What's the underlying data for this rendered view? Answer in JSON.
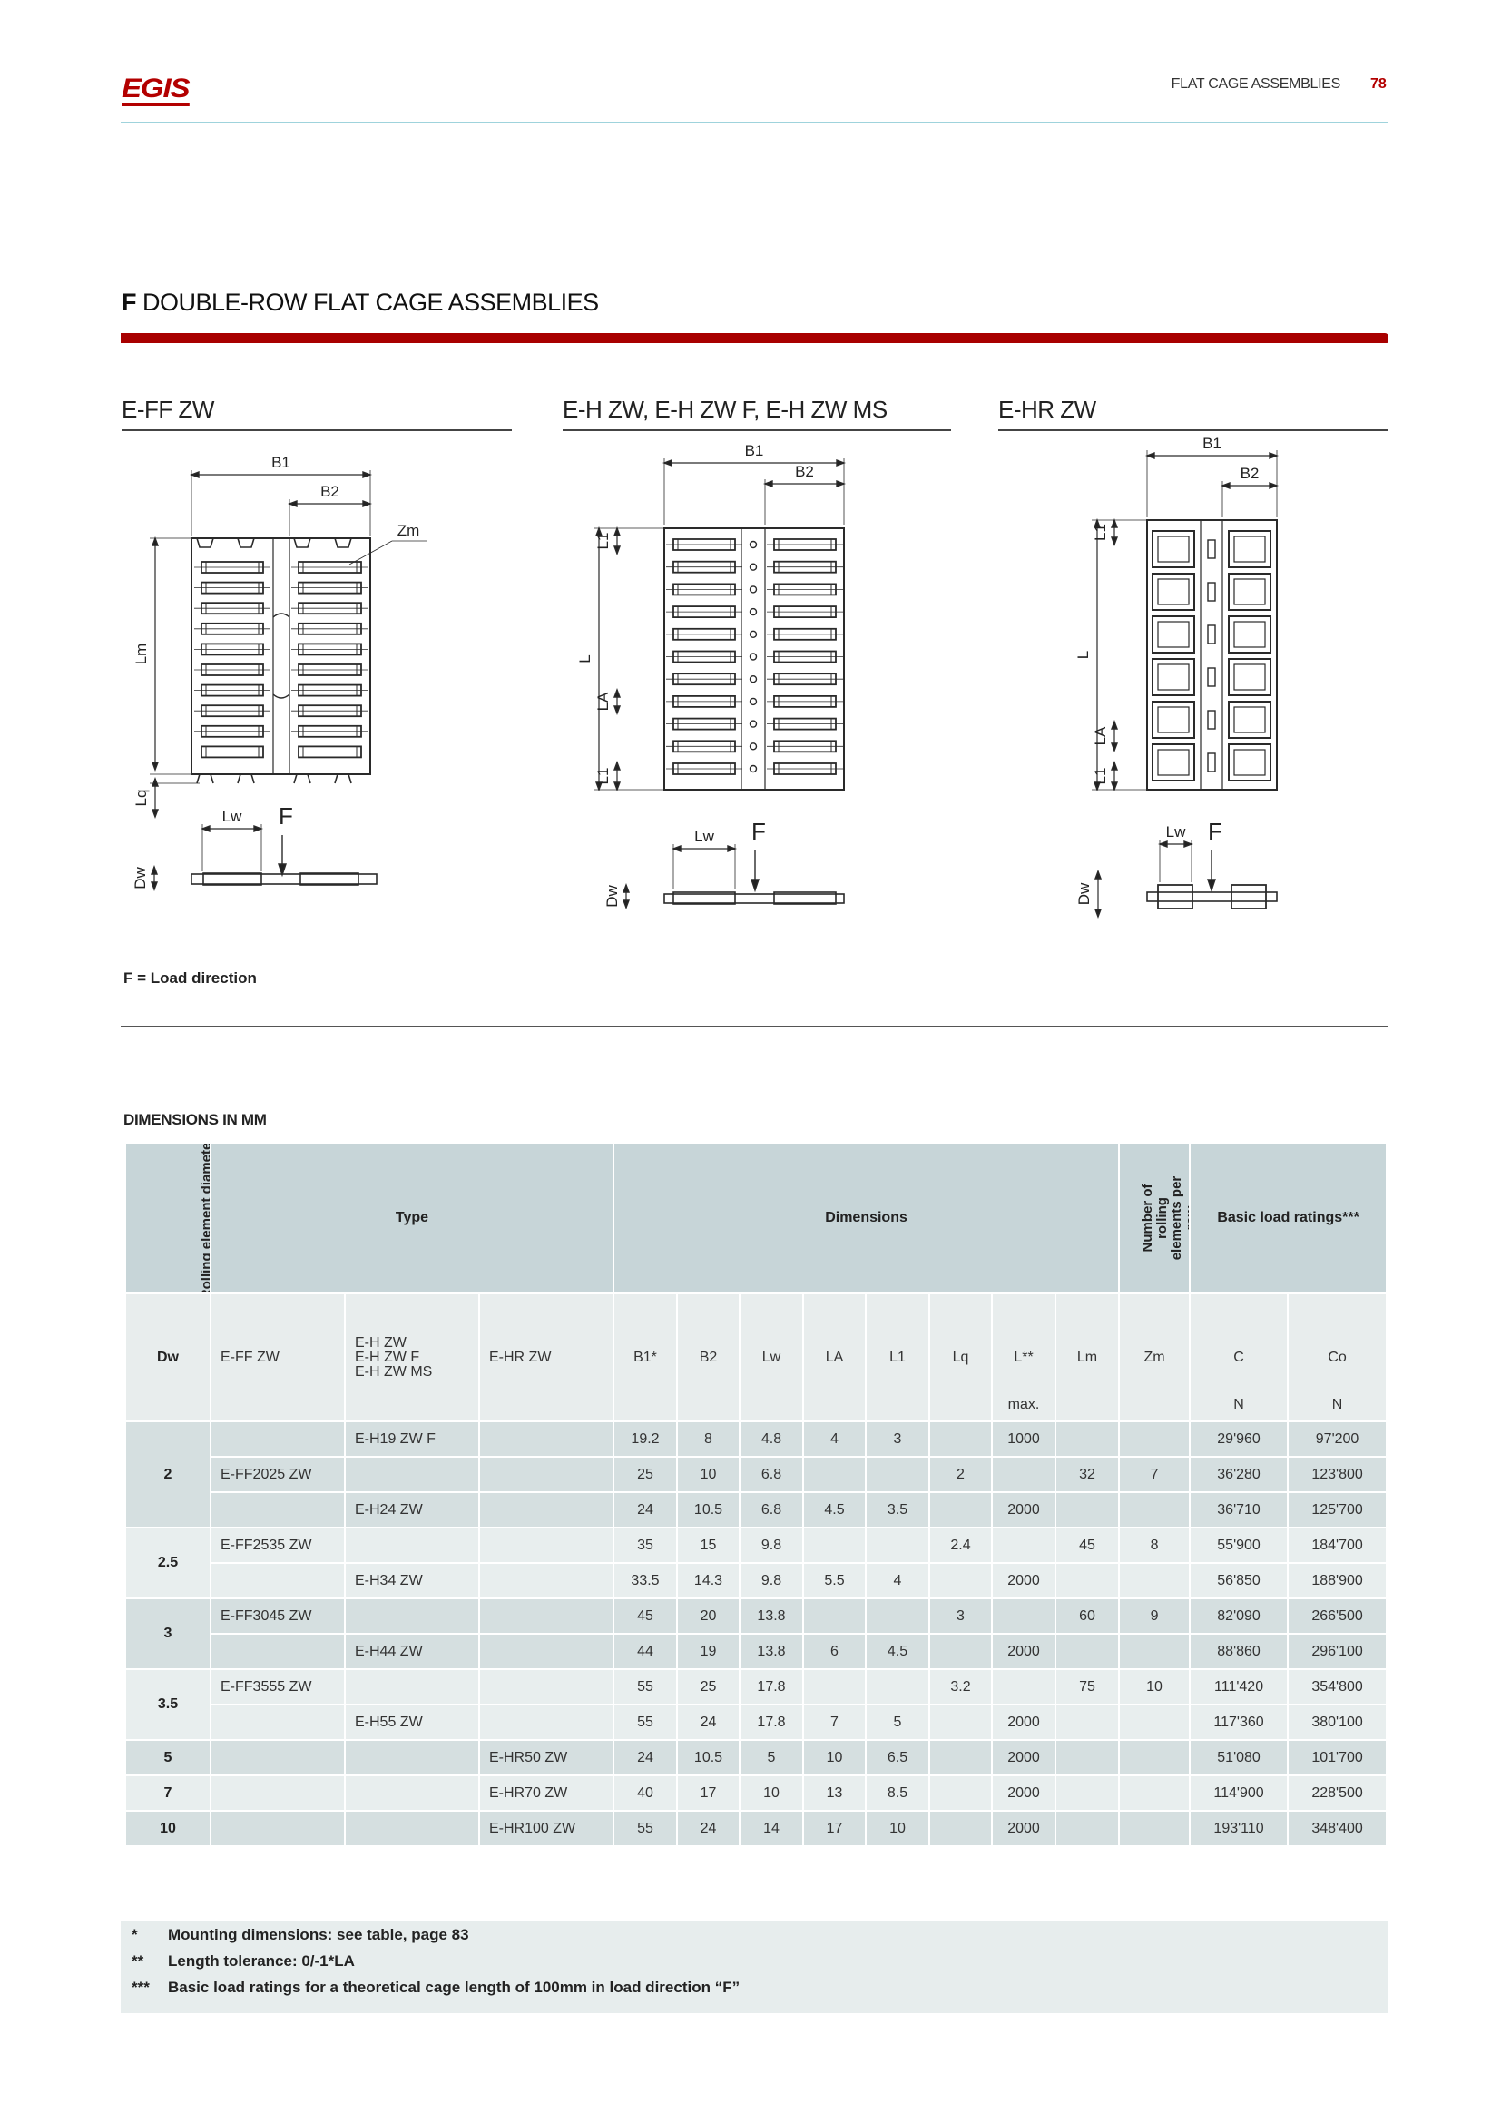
{
  "header": {
    "logo_text": "EGIS",
    "section": "FLAT CAGE ASSEMBLIES",
    "page_number": "78"
  },
  "title": {
    "letter": "F",
    "text": " DOUBLE-ROW FLAT CAGE ASSEMBLIES"
  },
  "colors": {
    "accent_red": "#a80000",
    "header_line": "#9fd3dc",
    "table_header": "#c7d5d8"
  },
  "diagrams": [
    {
      "heading": "E-FF ZW",
      "labels": {
        "b1": "B1",
        "b2": "B2",
        "zm": "Zm",
        "lm": "Lm",
        "lq": "Lq",
        "lw": "Lw",
        "f": "F",
        "dw": "Dw"
      }
    },
    {
      "heading": "E-H ZW, E-H ZW F, E-H ZW MS",
      "labels": {
        "b1": "B1",
        "b2": "B2",
        "l1a": "L1",
        "l": "L",
        "la": "LA",
        "l1b": "L1",
        "lw": "Lw",
        "f": "F",
        "dw": "Dw"
      }
    },
    {
      "heading": "E-HR ZW",
      "labels": {
        "b1": "B1",
        "b2": "B2",
        "l1a": "L1",
        "l": "L",
        "la": "LA",
        "l1b": "L1",
        "lw": "Lw",
        "f": "F",
        "dw": "Dw"
      }
    }
  ],
  "load_note": "F = Load direction",
  "table": {
    "caption": "DIMENSIONS IN MM",
    "group_headers": {
      "dw": "Rolling element diameter",
      "type": "Type",
      "dimensions": "Dimensions",
      "zm": "Number of rolling elements per row",
      "load": "Basic load ratings***"
    },
    "columns": [
      {
        "label": "Dw",
        "unit": ""
      },
      {
        "label": "E-FF ZW",
        "unit": ""
      },
      {
        "label": "E-H ZW\nE-H ZW F\nE-H ZW MS",
        "unit": ""
      },
      {
        "label": "E-HR ZW",
        "unit": ""
      },
      {
        "label": "B1*",
        "unit": ""
      },
      {
        "label": "B2",
        "unit": ""
      },
      {
        "label": "Lw",
        "unit": ""
      },
      {
        "label": "LA",
        "unit": ""
      },
      {
        "label": "L1",
        "unit": ""
      },
      {
        "label": "Lq",
        "unit": ""
      },
      {
        "label": "L**",
        "unit": "max."
      },
      {
        "label": "Lm",
        "unit": ""
      },
      {
        "label": "Zm",
        "unit": ""
      },
      {
        "label": "C",
        "unit": "N"
      },
      {
        "label": "Co",
        "unit": "N"
      }
    ],
    "groups": [
      {
        "dw": "2",
        "rows": [
          [
            "",
            "E-H19 ZW F",
            "",
            "19.2",
            "8",
            "4.8",
            "4",
            "3",
            "",
            "1000",
            "",
            "",
            "29'960",
            "97'200"
          ],
          [
            "E-FF2025 ZW",
            "",
            "",
            "25",
            "10",
            "6.8",
            "",
            "",
            "2",
            "",
            "32",
            "7",
            "36'280",
            "123'800"
          ],
          [
            "",
            "E-H24 ZW",
            "",
            "24",
            "10.5",
            "6.8",
            "4.5",
            "3.5",
            "",
            "2000",
            "",
            "",
            "36'710",
            "125'700"
          ]
        ]
      },
      {
        "dw": "2.5",
        "rows": [
          [
            "E-FF2535 ZW",
            "",
            "",
            "35",
            "15",
            "9.8",
            "",
            "",
            "2.4",
            "",
            "45",
            "8",
            "55'900",
            "184'700"
          ],
          [
            "",
            "E-H34 ZW",
            "",
            "33.5",
            "14.3",
            "9.8",
            "5.5",
            "4",
            "",
            "2000",
            "",
            "",
            "56'850",
            "188'900"
          ]
        ]
      },
      {
        "dw": "3",
        "rows": [
          [
            "E-FF3045 ZW",
            "",
            "",
            "45",
            "20",
            "13.8",
            "",
            "",
            "3",
            "",
            "60",
            "9",
            "82'090",
            "266'500"
          ],
          [
            "",
            "E-H44 ZW",
            "",
            "44",
            "19",
            "13.8",
            "6",
            "4.5",
            "",
            "2000",
            "",
            "",
            "88'860",
            "296'100"
          ]
        ]
      },
      {
        "dw": "3.5",
        "rows": [
          [
            "E-FF3555 ZW",
            "",
            "",
            "55",
            "25",
            "17.8",
            "",
            "",
            "3.2",
            "",
            "75",
            "10",
            "111'420",
            "354'800"
          ],
          [
            "",
            "E-H55 ZW",
            "",
            "55",
            "24",
            "17.8",
            "7",
            "5",
            "",
            "2000",
            "",
            "",
            "117'360",
            "380'100"
          ]
        ]
      },
      {
        "dw": "5",
        "rows": [
          [
            "",
            "",
            "E-HR50 ZW",
            "24",
            "10.5",
            "5",
            "10",
            "6.5",
            "",
            "2000",
            "",
            "",
            "51'080",
            "101'700"
          ]
        ]
      },
      {
        "dw": "7",
        "rows": [
          [
            "",
            "",
            "E-HR70 ZW",
            "40",
            "17",
            "10",
            "13",
            "8.5",
            "",
            "2000",
            "",
            "",
            "114'900",
            "228'500"
          ]
        ]
      },
      {
        "dw": "10",
        "rows": [
          [
            "",
            "",
            "E-HR100 ZW",
            "55",
            "24",
            "14",
            "17",
            "10",
            "",
            "2000",
            "",
            "",
            "193'110",
            "348'400"
          ]
        ]
      }
    ]
  },
  "footnotes": [
    {
      "mark": "*",
      "text": "Mounting dimensions: see table, page 83"
    },
    {
      "mark": "**",
      "text": "Length tolerance: 0/-1*LA"
    },
    {
      "mark": "***",
      "text": "Basic load ratings for a theoretical cage length of 100mm in load direction “F”"
    }
  ]
}
